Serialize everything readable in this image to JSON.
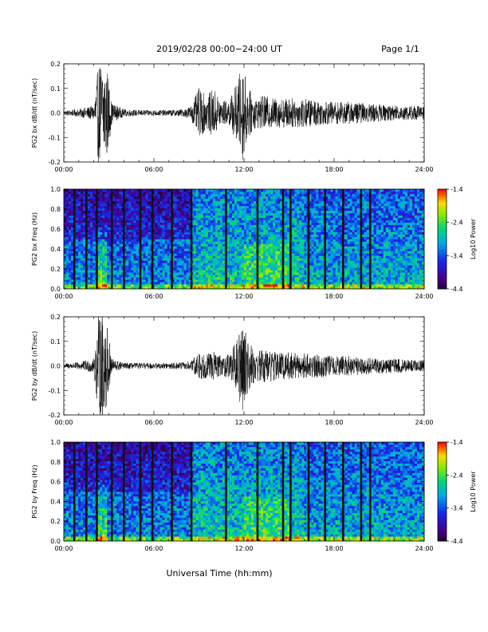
{
  "header": {
    "title": "2019/02/28  00:00−24:00 UT",
    "page": "Page 1/1"
  },
  "footer": {
    "xlabel": "Universal Time (hh:mm)"
  },
  "chart_data": [
    {
      "type": "line",
      "ylabel": "PG2 bx dB/dt (nT/sec)",
      "xlim": [
        0,
        24
      ],
      "ylim": [
        -0.2,
        0.2
      ],
      "xticks": [
        "00:00",
        "06:00",
        "12:00",
        "18:00",
        "24:00"
      ],
      "yticks": [
        "-0.2",
        "-0.1",
        "0.0",
        "0.1",
        "0.2"
      ],
      "envelope": {
        "hours": [
          0,
          1,
          2,
          2.3,
          2.6,
          2.9,
          3.2,
          4,
          5,
          6,
          7,
          8,
          8.5,
          9,
          9.5,
          10,
          10.5,
          11,
          11.5,
          11.9,
          12.3,
          12.8,
          13.3,
          14,
          15,
          16,
          17,
          18,
          19,
          20,
          21,
          22,
          23,
          24
        ],
        "amplitude": [
          0.01,
          0.015,
          0.03,
          0.2,
          0.22,
          0.18,
          0.04,
          0.015,
          0.012,
          0.012,
          0.012,
          0.015,
          0.03,
          0.1,
          0.07,
          0.1,
          0.05,
          0.05,
          0.12,
          0.2,
          0.1,
          0.06,
          0.07,
          0.06,
          0.06,
          0.06,
          0.05,
          0.045,
          0.045,
          0.04,
          0.035,
          0.03,
          0.03,
          0.03
        ]
      }
    },
    {
      "type": "heatmap",
      "ylabel": "PG2 bx Freq (Hz)",
      "colorbar_label": "Log10 Power",
      "colorbar_ticks": [
        "-1.4",
        "-2.4",
        "-3.4",
        "-4.4"
      ],
      "zlim": [
        -4.4,
        -1.4
      ],
      "xlim": [
        0,
        24
      ],
      "ylim": [
        0,
        1.0
      ],
      "xticks": [
        "00:00",
        "06:00",
        "12:00",
        "18:00",
        "24:00"
      ],
      "yticks": [
        "0.0",
        "0.2",
        "0.4",
        "0.6",
        "0.8",
        "1.0"
      ],
      "gaps_hours": [
        0.7,
        1.5,
        2.2,
        3.2,
        4.0,
        5.1,
        5.9,
        7.2,
        8.5,
        10.8,
        12.9,
        14.6,
        15.1,
        16.3,
        17.4,
        18.6,
        19.8,
        20.4
      ]
    },
    {
      "type": "line",
      "ylabel": "PG2 by dB/dt (nT/sec)",
      "xlim": [
        0,
        24
      ],
      "ylim": [
        -0.2,
        0.2
      ],
      "xticks": [
        "00:00",
        "06:00",
        "12:00",
        "18:00",
        "24:00"
      ],
      "yticks": [
        "-0.2",
        "-0.1",
        "0.0",
        "0.1",
        "0.2"
      ],
      "envelope": {
        "hours": [
          0,
          1,
          2,
          2.3,
          2.6,
          2.9,
          3.2,
          4,
          5,
          6,
          7,
          8,
          8.5,
          9,
          9.5,
          10,
          10.5,
          11,
          11.5,
          11.9,
          12.3,
          12.8,
          13.3,
          14,
          15,
          16,
          17,
          18,
          19,
          20,
          21,
          22,
          23,
          24
        ],
        "amplitude": [
          0.01,
          0.015,
          0.03,
          0.2,
          0.22,
          0.16,
          0.03,
          0.012,
          0.012,
          0.012,
          0.012,
          0.015,
          0.02,
          0.06,
          0.05,
          0.06,
          0.04,
          0.05,
          0.1,
          0.2,
          0.1,
          0.06,
          0.07,
          0.06,
          0.055,
          0.05,
          0.05,
          0.04,
          0.04,
          0.035,
          0.03,
          0.03,
          0.025,
          0.025
        ]
      }
    },
    {
      "type": "heatmap",
      "ylabel": "PG2 by Freq (Hz)",
      "colorbar_label": "Log10 Power",
      "colorbar_ticks": [
        "-1.4",
        "-2.4",
        "-3.4",
        "-4.4"
      ],
      "zlim": [
        -4.4,
        -1.4
      ],
      "xlim": [
        0,
        24
      ],
      "ylim": [
        0,
        1.0
      ],
      "xticks": [
        "00:00",
        "06:00",
        "12:00",
        "18:00",
        "24:00"
      ],
      "yticks": [
        "0.0",
        "0.2",
        "0.4",
        "0.6",
        "0.8",
        "1.0"
      ],
      "gaps_hours": [
        0.7,
        1.5,
        2.2,
        3.2,
        4.0,
        5.1,
        5.9,
        7.2,
        8.5,
        10.8,
        12.9,
        14.6,
        15.1,
        16.3,
        17.4,
        18.6,
        19.8,
        20.4
      ]
    }
  ]
}
